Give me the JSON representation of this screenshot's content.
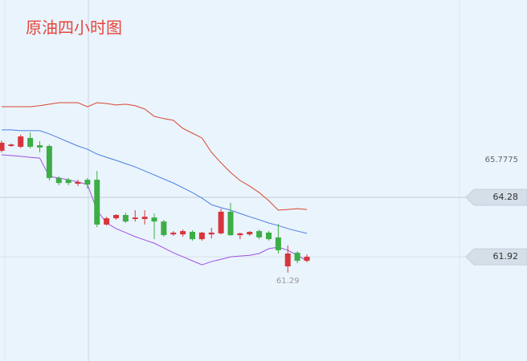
{
  "chart_data": {
    "type": "candlestick",
    "title": "原油四小时图",
    "open": [
      66.13,
      66.32,
      66.29,
      66.64,
      66.35,
      66.32,
      65.05,
      64.98,
      64.82,
      64.98,
      64.98,
      63.2,
      63.45,
      63.58,
      63.42,
      63.42,
      63.48,
      63.32,
      62.81,
      62.81,
      62.91,
      62.62,
      62.81,
      62.85,
      63.71,
      62.78,
      62.81,
      62.94,
      62.88,
      62.69,
      61.54,
      62.08,
      61.76
    ],
    "high": [
      66.54,
      66.42,
      66.77,
      66.86,
      66.51,
      66.38,
      65.11,
      65.05,
      64.98,
      65.05,
      65.33,
      63.51,
      63.61,
      63.67,
      63.77,
      63.77,
      63.64,
      63.39,
      62.94,
      63.0,
      62.97,
      62.91,
      63.07,
      63.83,
      64.06,
      62.88,
      62.94,
      63.0,
      62.94,
      63.23,
      62.37,
      62.14,
      62.02
    ],
    "low": [
      66.07,
      66.29,
      66.23,
      66.23,
      66.07,
      64.95,
      64.76,
      64.76,
      64.73,
      64.63,
      63.1,
      63.16,
      63.39,
      63.26,
      63.32,
      63.2,
      62.62,
      62.72,
      62.75,
      62.72,
      62.56,
      62.56,
      62.65,
      62.81,
      62.75,
      62.62,
      62.75,
      62.62,
      62.56,
      62.05,
      61.29,
      61.67,
      61.7
    ],
    "close": [
      66.45,
      66.38,
      66.7,
      66.29,
      66.26,
      65.05,
      64.85,
      64.85,
      64.89,
      64.79,
      63.2,
      63.45,
      63.58,
      63.32,
      63.48,
      63.51,
      63.32,
      62.78,
      62.88,
      62.94,
      62.62,
      62.88,
      62.88,
      63.71,
      62.78,
      62.85,
      62.91,
      62.69,
      62.62,
      62.18,
      62.05,
      61.76,
      61.92
    ],
    "up_color": "#d8343c",
    "down_color": "#3cae45",
    "series": [
      {
        "color": "#d9472f",
        "values": [
          67.88,
          67.88,
          67.88,
          67.88,
          67.92,
          67.98,
          68.04,
          68.04,
          68.04,
          67.88,
          68.04,
          68.01,
          67.95,
          67.98,
          67.92,
          67.79,
          67.5,
          67.41,
          67.34,
          67.02,
          66.83,
          66.64,
          66.07,
          65.65,
          65.27,
          64.95,
          64.73,
          64.47,
          64.15,
          63.77,
          63.8,
          63.83,
          63.8
        ]
      },
      {
        "color": "#4a7fe0",
        "values": [
          66.96,
          66.96,
          66.93,
          66.93,
          66.93,
          66.8,
          66.64,
          66.48,
          66.32,
          66.19,
          66.0,
          65.87,
          65.75,
          65.62,
          65.49,
          65.33,
          65.17,
          65.01,
          64.85,
          64.66,
          64.47,
          64.25,
          63.99,
          63.87,
          63.77,
          63.64,
          63.51,
          63.39,
          63.26,
          63.16,
          63.04,
          62.94,
          62.85
        ]
      },
      {
        "color": "#a050e0",
        "values": [
          65.97,
          65.94,
          65.91,
          65.87,
          65.84,
          65.11,
          65.05,
          64.98,
          64.89,
          64.79,
          63.77,
          63.26,
          63.04,
          62.88,
          62.72,
          62.59,
          62.46,
          62.27,
          62.08,
          61.92,
          61.76,
          61.6,
          61.73,
          61.82,
          61.92,
          61.95,
          61.98,
          62.05,
          62.24,
          62.3,
          62.18,
          61.98,
          61.76
        ]
      }
    ],
    "ylim": [
      57.78,
      72.12
    ],
    "yticks": [
      65.7775
    ],
    "price_lines": [
      64.28,
      61.92
    ],
    "low_annotation": 61.29
  }
}
